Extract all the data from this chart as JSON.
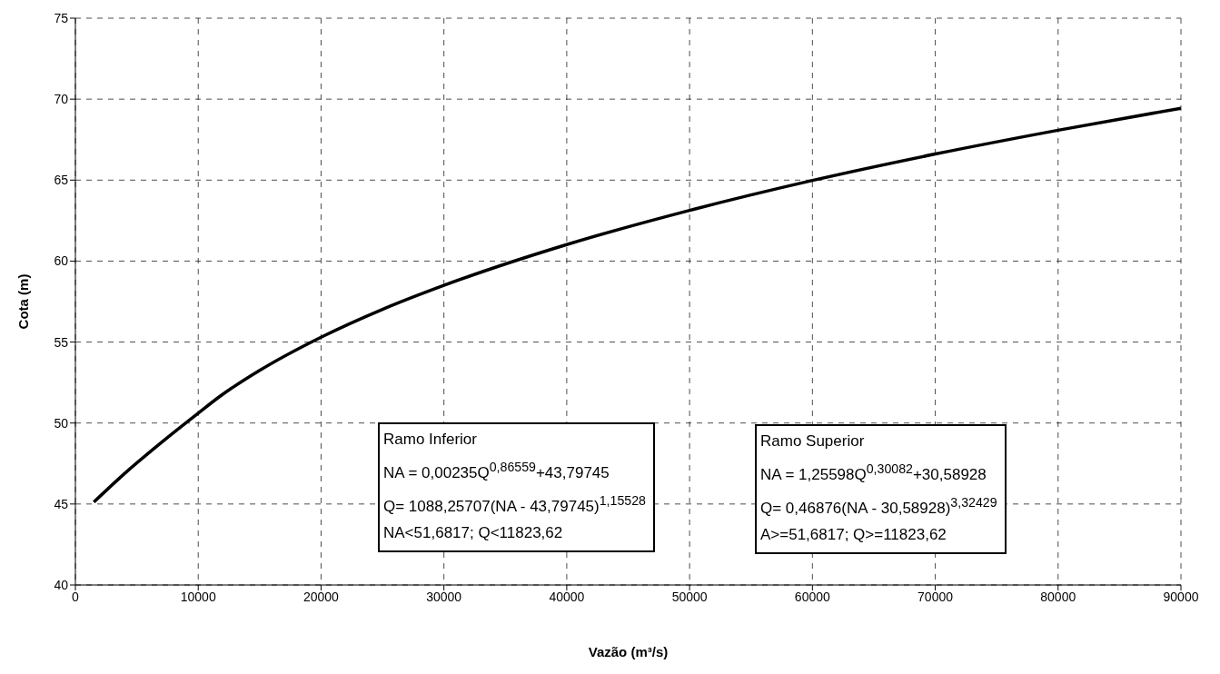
{
  "chart_data": {
    "type": "line",
    "xlabel": "Vazão (m³/s)",
    "ylabel": "Cota (m)",
    "x": [
      1500,
      4000,
      7000,
      10000,
      11823.62,
      15000,
      20000,
      25000,
      30000,
      40000,
      50000,
      60000,
      70000,
      80000,
      90000
    ],
    "series": [
      {
        "color": "#000000",
        "values": [
          45.12,
          46.88,
          48.8,
          50.61,
          51.68,
          53.25,
          55.3,
          57.02,
          58.5,
          61.02,
          63.13,
          64.98,
          66.61,
          68.08,
          69.44
        ]
      }
    ],
    "xlim": [
      0,
      90000
    ],
    "xticks": [
      0,
      10000,
      20000,
      30000,
      40000,
      50000,
      60000,
      70000,
      80000,
      90000
    ],
    "ylim": [
      40,
      75
    ],
    "yticks": [
      40,
      45,
      50,
      55,
      60,
      65,
      70,
      75
    ],
    "grid": true,
    "legend": false,
    "marker": "none",
    "line_style": "solid",
    "annotations": [
      "Ramo Inferior",
      "NA = 0,00235Q$^{0,86559}$+43,79745",
      "Q= 1088,25707(NA - 43,79745)$^{1,15528}$",
      "NA<51,6817; Q<11823,62",
      "Ramo Superior",
      "NA = 1,25598Q$^{0,30082}$+30,58928",
      "Q= 0,46876(NA - 30,58928)$^{3,32429}$",
      "A>=51,6817; Q>=11823,62"
    ]
  }
}
